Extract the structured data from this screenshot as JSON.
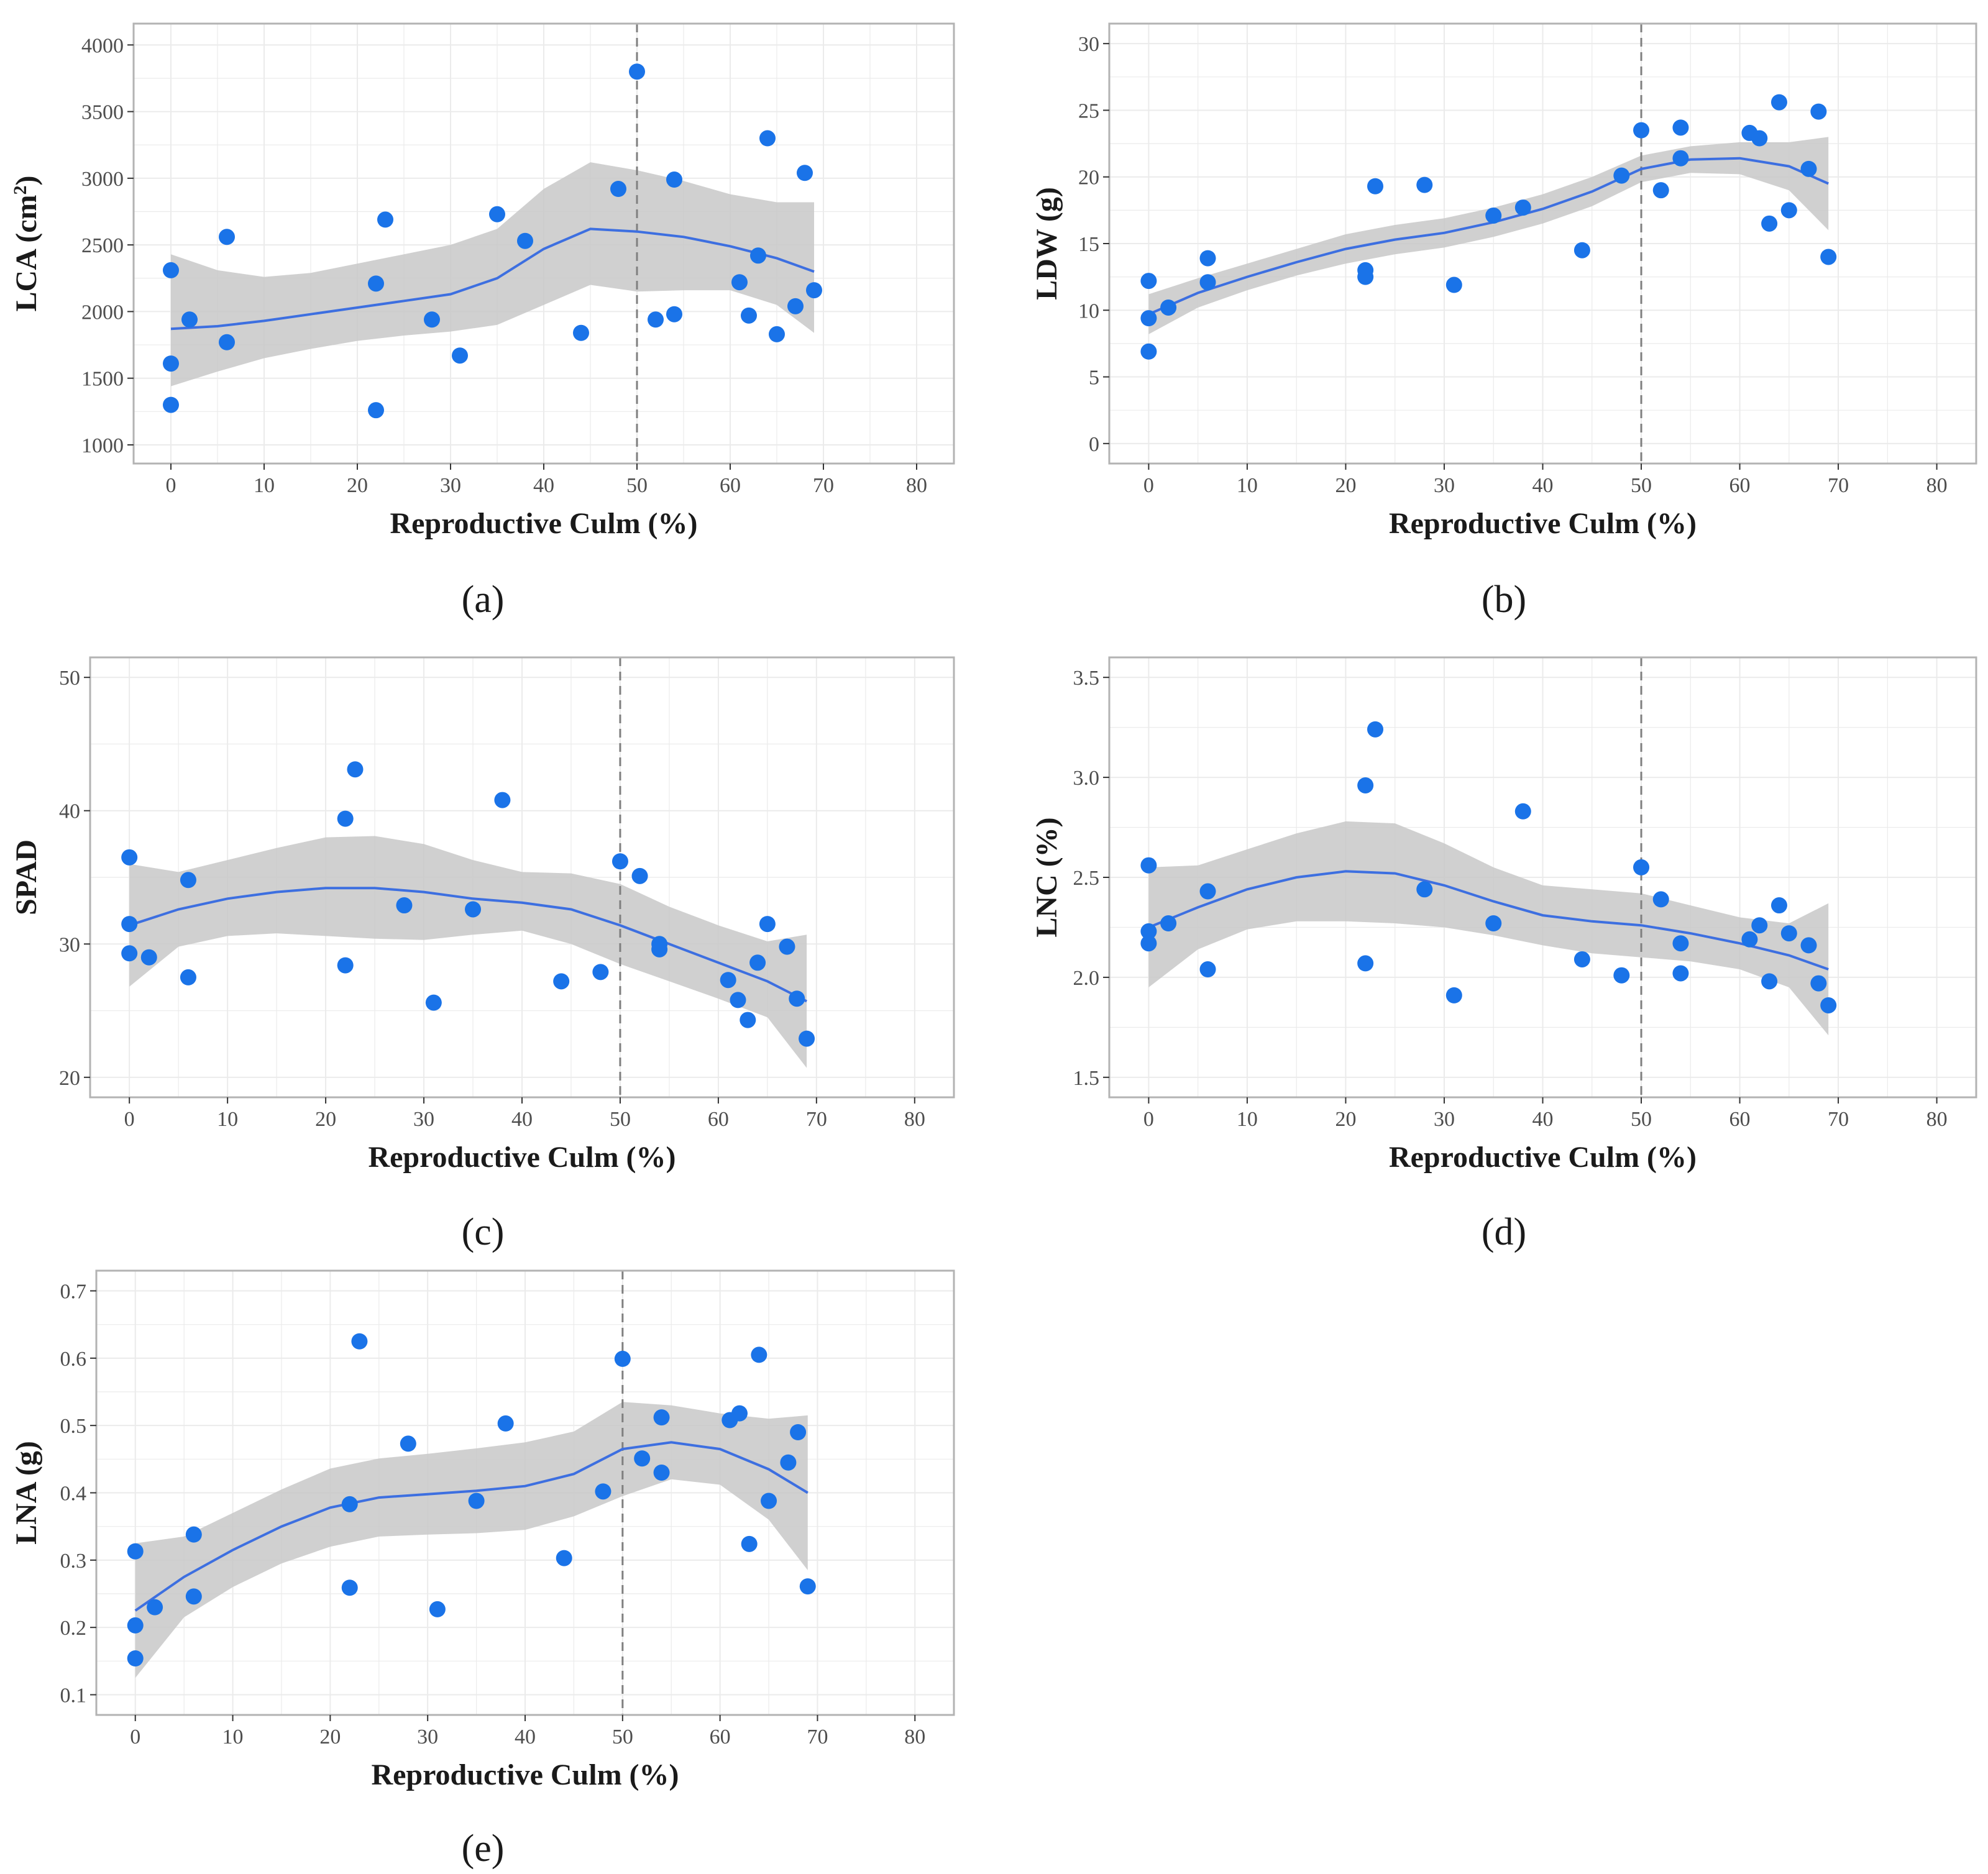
{
  "figure": {
    "colors": {
      "point": "#1a73e8",
      "curve": "#3d6fe0",
      "ribbon": "#c8c8c8",
      "grid": "#ebebeb",
      "frame": "#b3b3b3",
      "vline": "#7f7f7f"
    }
  },
  "chart_data": [
    {
      "id": "a",
      "panel_label": "(a)",
      "type": "scatter",
      "xlabel": "Reproductive Culm (%)",
      "ylabel": "LCA (cm²)",
      "ylabel_main": "LCA (cm",
      "ylabel_sup": "2",
      "ylabel_close": ")",
      "xlim": [
        -4,
        84
      ],
      "ylim": [
        860,
        4160
      ],
      "xticks": [
        0,
        10,
        20,
        30,
        40,
        50,
        60,
        70,
        80
      ],
      "yticks": [
        1000,
        1500,
        2000,
        2500,
        3000,
        3500,
        4000
      ],
      "vline_x": 50,
      "points": {
        "x": [
          0,
          0,
          0,
          2,
          6,
          6,
          22,
          22,
          23,
          28,
          31,
          35,
          38,
          44,
          48,
          50,
          52,
          54,
          54,
          61,
          62,
          63,
          64,
          65,
          67,
          68,
          69
        ],
        "y": [
          2310,
          1610,
          1300,
          1940,
          2560,
          1770,
          2210,
          1260,
          2690,
          1940,
          1670,
          2730,
          2530,
          1840,
          2920,
          3800,
          1940,
          2990,
          1980,
          2220,
          1970,
          2420,
          3300,
          1830,
          2040,
          3040,
          2160
        ]
      },
      "fit": {
        "x": [
          0,
          5,
          10,
          15,
          20,
          25,
          30,
          35,
          40,
          45,
          50,
          55,
          60,
          65,
          69
        ],
        "y": [
          1870,
          1890,
          1930,
          1980,
          2030,
          2080,
          2130,
          2250,
          2470,
          2620,
          2600,
          2560,
          2490,
          2400,
          2300
        ],
        "lower": [
          1440,
          1550,
          1650,
          1720,
          1780,
          1820,
          1850,
          1900,
          2050,
          2200,
          2150,
          2160,
          2160,
          2050,
          1840
        ],
        "upper": [
          2430,
          2310,
          2260,
          2290,
          2360,
          2430,
          2500,
          2620,
          2920,
          3120,
          3060,
          2980,
          2880,
          2820,
          2820
        ]
      }
    },
    {
      "id": "b",
      "panel_label": "(b)",
      "type": "scatter",
      "xlabel": "Reproductive Culm (%)",
      "ylabel": "LDW (g)",
      "ylabel_main": "LDW (g)",
      "ylabel_sup": "",
      "ylabel_close": "",
      "xlim": [
        -4,
        84
      ],
      "ylim": [
        -1.5,
        31.5
      ],
      "xticks": [
        0,
        10,
        20,
        30,
        40,
        50,
        60,
        70,
        80
      ],
      "yticks": [
        0,
        5,
        10,
        15,
        20,
        25,
        30
      ],
      "vline_x": 50,
      "points": {
        "x": [
          0,
          0,
          0,
          2,
          6,
          6,
          22,
          22,
          23,
          28,
          31,
          35,
          38,
          44,
          48,
          50,
          52,
          54,
          54,
          61,
          62,
          63,
          64,
          65,
          67,
          68,
          69
        ],
        "y": [
          12.2,
          9.4,
          6.9,
          10.2,
          13.9,
          12.1,
          13.0,
          12.5,
          19.3,
          19.4,
          11.9,
          17.1,
          17.7,
          14.5,
          20.1,
          23.5,
          19.0,
          23.7,
          21.4,
          23.3,
          22.9,
          16.5,
          25.6,
          17.5,
          20.6,
          24.9,
          14.0
        ]
      },
      "fit": {
        "x": [
          0,
          5,
          10,
          15,
          20,
          25,
          30,
          35,
          40,
          45,
          50,
          55,
          60,
          65,
          69
        ],
        "y": [
          9.7,
          11.3,
          12.5,
          13.6,
          14.6,
          15.3,
          15.8,
          16.6,
          17.6,
          18.9,
          20.6,
          21.3,
          21.4,
          20.8,
          19.5
        ],
        "lower": [
          8.2,
          10.2,
          11.5,
          12.6,
          13.5,
          14.2,
          14.7,
          15.5,
          16.5,
          17.8,
          19.6,
          20.3,
          20.2,
          19.0,
          16.0
        ],
        "upper": [
          11.2,
          12.4,
          13.5,
          14.6,
          15.7,
          16.4,
          16.9,
          17.7,
          18.7,
          20.0,
          21.6,
          22.3,
          22.6,
          22.6,
          23.0
        ]
      }
    },
    {
      "id": "c",
      "panel_label": "(c)",
      "type": "scatter",
      "xlabel": "Reproductive Culm (%)",
      "ylabel": "SPAD",
      "ylabel_main": "SPAD",
      "ylabel_sup": "",
      "ylabel_close": "",
      "xlim": [
        -4,
        84
      ],
      "ylim": [
        18.5,
        51.5
      ],
      "xticks": [
        0,
        10,
        20,
        30,
        40,
        50,
        60,
        70,
        80
      ],
      "yticks": [
        20,
        30,
        40,
        50
      ],
      "vline_x": 50,
      "points": {
        "x": [
          0,
          0,
          0,
          2,
          6,
          6,
          22,
          22,
          23,
          28,
          31,
          35,
          38,
          44,
          48,
          50,
          52,
          54,
          54,
          61,
          62,
          63,
          64,
          65,
          67,
          68,
          69
        ],
        "y": [
          36.5,
          31.5,
          29.3,
          29.0,
          34.8,
          27.5,
          39.4,
          28.4,
          43.1,
          32.9,
          25.6,
          32.6,
          40.8,
          27.2,
          27.9,
          36.2,
          35.1,
          30.0,
          29.6,
          27.3,
          25.8,
          24.3,
          28.6,
          31.5,
          29.8,
          25.9,
          22.9
        ]
      },
      "fit": {
        "x": [
          0,
          5,
          10,
          15,
          20,
          25,
          30,
          35,
          40,
          45,
          50,
          55,
          60,
          65,
          69
        ],
        "y": [
          31.4,
          32.6,
          33.4,
          33.9,
          34.2,
          34.2,
          33.9,
          33.4,
          33.1,
          32.6,
          31.4,
          30.0,
          28.6,
          27.2,
          25.7
        ],
        "lower": [
          26.8,
          29.8,
          30.6,
          30.8,
          30.6,
          30.4,
          30.3,
          30.7,
          31.0,
          30.0,
          28.5,
          27.2,
          25.9,
          24.5,
          20.7
        ],
        "upper": [
          36.0,
          35.4,
          36.3,
          37.2,
          38.0,
          38.1,
          37.5,
          36.3,
          35.4,
          35.3,
          34.5,
          32.8,
          31.4,
          30.2,
          30.7
        ]
      }
    },
    {
      "id": "d",
      "panel_label": "(d)",
      "type": "scatter",
      "xlabel": "Reproductive Culm (%)",
      "ylabel": "LNC (%)",
      "ylabel_main": "LNC (%)",
      "ylabel_sup": "",
      "ylabel_close": "",
      "xlim": [
        -4,
        84
      ],
      "ylim": [
        1.4,
        3.6
      ],
      "xticks": [
        0,
        10,
        20,
        30,
        40,
        50,
        60,
        70,
        80
      ],
      "yticks": [
        1.5,
        2.0,
        2.5,
        3.0,
        3.5
      ],
      "ytick_labels": [
        "1.5",
        "2.0",
        "2.5",
        "3.0",
        "3.5"
      ],
      "vline_x": 50,
      "points": {
        "x": [
          0,
          0,
          0,
          2,
          6,
          6,
          22,
          22,
          23,
          28,
          31,
          35,
          38,
          44,
          48,
          50,
          52,
          54,
          54,
          61,
          62,
          63,
          64,
          65,
          67,
          68,
          69
        ],
        "y": [
          2.56,
          2.23,
          2.17,
          2.27,
          2.43,
          2.04,
          2.96,
          2.07,
          3.24,
          2.44,
          1.91,
          2.27,
          2.83,
          2.09,
          2.01,
          2.55,
          2.39,
          2.17,
          2.02,
          2.19,
          2.26,
          1.98,
          2.36,
          2.22,
          2.16,
          1.97,
          1.86
        ]
      },
      "fit": {
        "x": [
          0,
          5,
          10,
          15,
          20,
          25,
          30,
          35,
          40,
          45,
          50,
          55,
          60,
          65,
          69
        ],
        "y": [
          2.25,
          2.35,
          2.44,
          2.5,
          2.53,
          2.52,
          2.46,
          2.38,
          2.31,
          2.28,
          2.26,
          2.22,
          2.17,
          2.11,
          2.04
        ],
        "lower": [
          1.95,
          2.14,
          2.24,
          2.28,
          2.28,
          2.27,
          2.25,
          2.21,
          2.16,
          2.12,
          2.1,
          2.08,
          2.04,
          1.95,
          1.71
        ],
        "upper": [
          2.55,
          2.56,
          2.64,
          2.72,
          2.78,
          2.77,
          2.67,
          2.55,
          2.46,
          2.44,
          2.42,
          2.36,
          2.3,
          2.27,
          2.37
        ]
      }
    },
    {
      "id": "e",
      "panel_label": "(e)",
      "type": "scatter",
      "xlabel": "Reproductive Culm (%)",
      "ylabel": "LNA (g)",
      "ylabel_main": "LNA (g)",
      "ylabel_sup": "",
      "ylabel_close": "",
      "xlim": [
        -4,
        84
      ],
      "ylim": [
        0.07,
        0.73
      ],
      "xticks": [
        0,
        10,
        20,
        30,
        40,
        50,
        60,
        70,
        80
      ],
      "yticks": [
        0.1,
        0.2,
        0.3,
        0.4,
        0.5,
        0.6,
        0.7
      ],
      "vline_x": 50,
      "points": {
        "x": [
          0,
          0,
          0,
          2,
          6,
          6,
          22,
          22,
          23,
          28,
          31,
          35,
          38,
          44,
          48,
          50,
          52,
          54,
          54,
          61,
          62,
          63,
          64,
          65,
          67,
          68,
          69
        ],
        "y": [
          0.313,
          0.203,
          0.154,
          0.23,
          0.338,
          0.246,
          0.383,
          0.259,
          0.625,
          0.473,
          0.227,
          0.388,
          0.503,
          0.303,
          0.402,
          0.599,
          0.451,
          0.512,
          0.43,
          0.508,
          0.518,
          0.324,
          0.605,
          0.388,
          0.445,
          0.49,
          0.261
        ]
      },
      "fit": {
        "x": [
          0,
          5,
          10,
          15,
          20,
          25,
          30,
          35,
          40,
          45,
          50,
          55,
          60,
          65,
          69
        ],
        "y": [
          0.225,
          0.275,
          0.315,
          0.35,
          0.378,
          0.393,
          0.398,
          0.403,
          0.41,
          0.428,
          0.465,
          0.475,
          0.465,
          0.435,
          0.4
        ],
        "lower": [
          0.125,
          0.215,
          0.26,
          0.295,
          0.32,
          0.335,
          0.338,
          0.34,
          0.345,
          0.365,
          0.395,
          0.42,
          0.412,
          0.36,
          0.285
        ],
        "upper": [
          0.325,
          0.335,
          0.37,
          0.405,
          0.436,
          0.451,
          0.458,
          0.466,
          0.475,
          0.491,
          0.535,
          0.53,
          0.518,
          0.51,
          0.515
        ]
      }
    }
  ]
}
